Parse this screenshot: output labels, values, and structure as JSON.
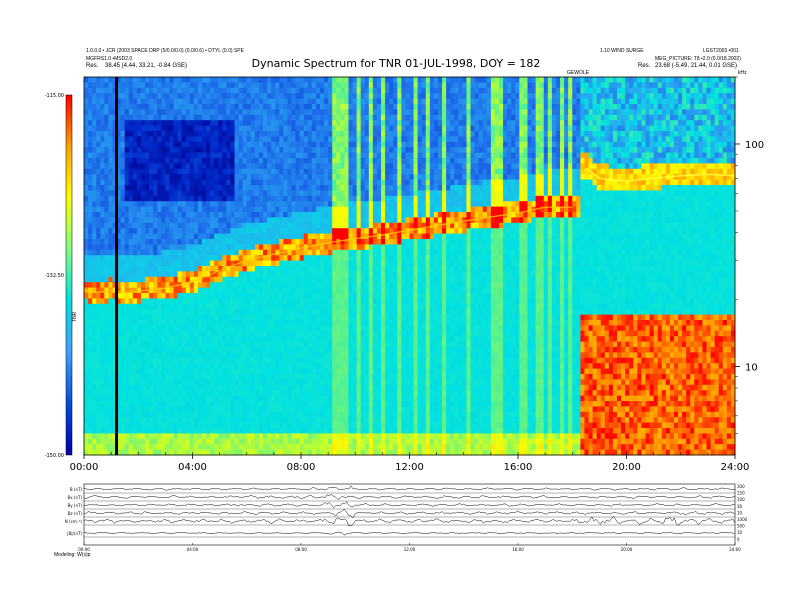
{
  "header": {
    "left_line1": "1.0.0.0 • JCR (2003 SPACE DRP (5/0.0/0.0) (0.0/0.6) • DTYL (0.0) SPE",
    "left_line2": "MGFRS1.0 •MSD2.0",
    "left_res_label": "Res.",
    "left_res_value": "38.45 (4.44, 33.21, -0.84 GSE)",
    "right_line1": "1.10 WIND SURGE",
    "right_line1b": "LGST2003 •001",
    "right_line2": "MEG_PICTURE: T8 •2.0 (0.0/18.2002)",
    "right_res_label": "Res.",
    "right_res_value": "23.68 (-5.49, 21.44, 0.01 GSE)",
    "small_label_mid": "GEWOLE",
    "small_label_right": "kHz"
  },
  "chart_data": {
    "type": "heatmap",
    "title": "Dynamic Spectrum for TNR 01-JUL-1998, DOY = 182",
    "x_ticks": [
      "00:00",
      "04:00",
      "08:00",
      "12:00",
      "16:00",
      "20:00",
      "24:00"
    ],
    "x_range": [
      0,
      24
    ],
    "y_scale": "log",
    "y_range_khz": [
      4,
      200
    ],
    "y_ticks": [
      "100",
      "10"
    ],
    "y_tick_values": [
      100,
      10
    ],
    "colorbar": {
      "ticks": [
        "-115.00",
        "-132.50",
        "-150.00"
      ],
      "label": "TNR",
      "colors": [
        "#ff0000",
        "#ffa000",
        "#ffff00",
        "#80ff80",
        "#00e0e0",
        "#40a0ff",
        "#0050d8",
        "#0000b0"
      ]
    },
    "plasma_line_khz": [
      [
        0,
        22
      ],
      [
        0.5,
        21.5
      ],
      [
        1,
        22
      ],
      [
        1.5,
        21.5
      ],
      [
        2,
        21.8
      ],
      [
        3,
        22.5
      ],
      [
        4,
        24
      ],
      [
        5,
        27
      ],
      [
        6,
        30
      ],
      [
        7,
        32
      ],
      [
        8,
        34
      ],
      [
        9,
        36
      ],
      [
        10,
        37.5
      ],
      [
        11,
        39
      ],
      [
        12,
        41
      ],
      [
        13,
        43
      ],
      [
        14,
        45
      ],
      [
        15,
        47
      ],
      [
        16,
        49
      ],
      [
        17,
        52
      ],
      [
        18,
        52
      ]
    ],
    "upper_line_khz": [
      [
        18.5,
        78
      ],
      [
        19,
        70
      ],
      [
        20,
        68
      ],
      [
        21,
        70
      ],
      [
        22,
        72
      ],
      [
        23,
        73
      ],
      [
        24,
        72
      ]
    ],
    "dark_line_hour": 1.2,
    "red_block": {
      "x_start": 18.4,
      "x_end": 24,
      "y_low_khz": 4,
      "y_high_khz": 17
    }
  },
  "panels": {
    "left_labels": [
      "B (nT)",
      "Bx (nT)",
      "By (nT)",
      "Bz (nT)",
      "N (cm⁻³)",
      "|B|/(nT)"
    ],
    "right_labels": [
      "300",
      "150",
      "100",
      "30",
      "10",
      "1000",
      "500",
      "10",
      "0"
    ],
    "x_ticks": [
      "00:00",
      "04:00",
      "08:00",
      "12:00",
      "16:00",
      "20:00",
      "24:00"
    ],
    "footer": "Modeling: W(s)p"
  }
}
